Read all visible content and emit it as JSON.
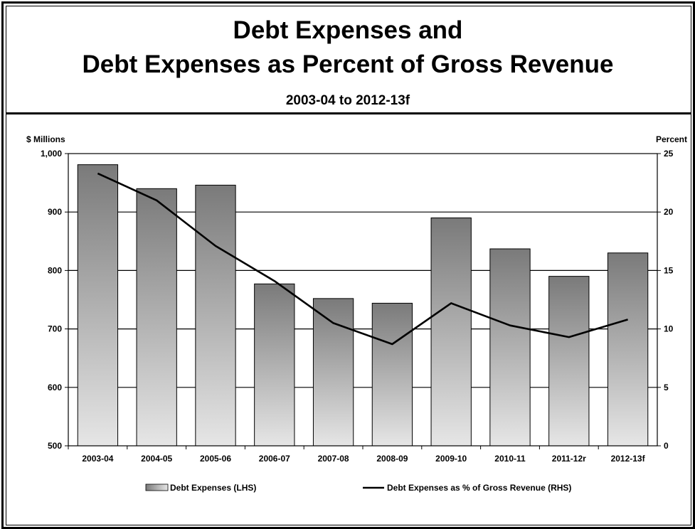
{
  "title_line1": "Debt Expenses and",
  "title_line2": "Debt Expenses as Percent of Gross Revenue",
  "subtitle": "2003-04 to 2012-13f",
  "chart_data": {
    "type": "bar",
    "categories": [
      "2003-04",
      "2004-05",
      "2005-06",
      "2006-07",
      "2007-08",
      "2008-09",
      "2009-10",
      "2010-11",
      "2011-12r",
      "2012-13f"
    ],
    "series": [
      {
        "name": "Debt Expenses (LHS)",
        "type": "bar",
        "axis": "left",
        "values": [
          981,
          940,
          946,
          777,
          752,
          744,
          890,
          837,
          790,
          830
        ]
      },
      {
        "name": "Debt Expenses as % of Gross Revenue (RHS)",
        "type": "line",
        "axis": "right",
        "values": [
          23.3,
          21.0,
          17.1,
          14.1,
          10.5,
          8.7,
          12.2,
          10.3,
          9.3,
          10.8
        ]
      }
    ],
    "ylabel_left": "$ Millions",
    "ylabel_right": "Percent",
    "ylim_left": [
      500,
      1000
    ],
    "ylim_right": [
      0,
      25
    ],
    "yticks_left": [
      "500",
      "600",
      "700",
      "800",
      "900",
      "1,000"
    ],
    "yticks_right": [
      "0",
      "5",
      "10",
      "15",
      "20",
      "25"
    ],
    "grid": true,
    "legend_position": "bottom",
    "colors": {
      "bar_top": "#7a7a7a",
      "bar_bottom": "#e6e6e6",
      "line": "#000000"
    }
  }
}
